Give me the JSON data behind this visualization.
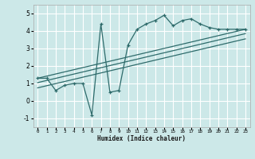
{
  "title": "",
  "xlabel": "Humidex (Indice chaleur)",
  "ylabel": "",
  "bg_color": "#cce8e8",
  "grid_color": "#ffffff",
  "line_color": "#2e6b6b",
  "xlim": [
    -0.5,
    23.5
  ],
  "ylim": [
    -1.5,
    5.5
  ],
  "xticks": [
    0,
    1,
    2,
    3,
    4,
    5,
    6,
    7,
    8,
    9,
    10,
    11,
    12,
    13,
    14,
    15,
    16,
    17,
    18,
    19,
    20,
    21,
    22,
    23
  ],
  "yticks": [
    -1,
    0,
    1,
    2,
    3,
    4,
    5
  ],
  "main_x": [
    0,
    1,
    2,
    3,
    4,
    5,
    6,
    7,
    8,
    9,
    10,
    11,
    12,
    13,
    14,
    15,
    16,
    17,
    18,
    19,
    20,
    21,
    22,
    23
  ],
  "main_y": [
    1.3,
    1.3,
    0.6,
    0.9,
    1.0,
    1.0,
    -0.8,
    4.4,
    0.5,
    0.6,
    3.2,
    4.1,
    4.4,
    4.6,
    4.9,
    4.3,
    4.6,
    4.7,
    4.4,
    4.2,
    4.1,
    4.1,
    4.1,
    4.1
  ],
  "line1_x": [
    0,
    23
  ],
  "line1_y": [
    1.3,
    4.1
  ],
  "line2_x": [
    0,
    23
  ],
  "line2_y": [
    1.05,
    3.85
  ],
  "line3_x": [
    0,
    23
  ],
  "line3_y": [
    0.75,
    3.55
  ]
}
